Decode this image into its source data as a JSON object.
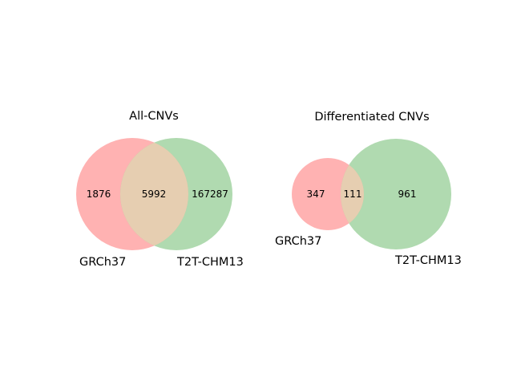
{
  "diagrams": [
    {
      "title": "All-CNVs",
      "set_a": {
        "label": "GRCh37",
        "only_count": "1876",
        "color": "#ff9f9f"
      },
      "set_b": {
        "label": "T2T-CHM13",
        "only_count": "167287",
        "color": "#8fcb8f"
      },
      "intersection": {
        "count": "5992",
        "color": "#e6ceb1"
      }
    },
    {
      "title": "Differentiated CNVs",
      "set_a": {
        "label": "GRCh37",
        "only_count": "347",
        "color": "#ff9f9f"
      },
      "set_b": {
        "label": "T2T-CHM13",
        "only_count": "961",
        "color": "#8fcb8f"
      },
      "intersection": {
        "count": "111",
        "color": "#e6ceb1"
      }
    }
  ]
}
